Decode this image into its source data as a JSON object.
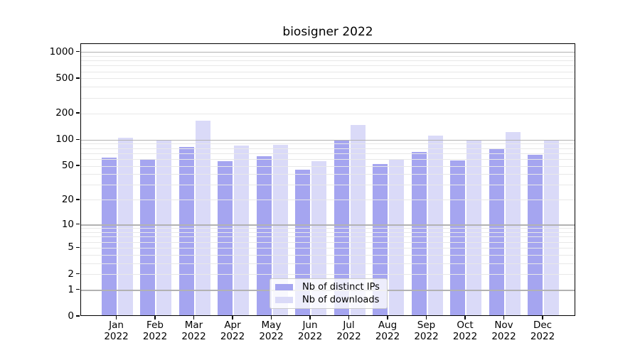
{
  "title": "biosigner 2022",
  "colors": {
    "ips_bar": "#a5a5f0",
    "downloads_bar": "#dadaf8",
    "grid_major": "#b2b2b2",
    "grid_minor": "#e8e8e8",
    "axis": "#000000"
  },
  "legend": {
    "items": [
      {
        "label": "Nb of distinct IPs",
        "color": "#a5a5f0"
      },
      {
        "label": "Nb of downloads",
        "color": "#dadaf8"
      }
    ]
  },
  "chart_data": {
    "type": "bar",
    "title": "biosigner 2022",
    "categories": [
      "Jan 2022",
      "Feb 2022",
      "Mar 2022",
      "Apr 2022",
      "May 2022",
      "Jun 2022",
      "Jul 2022",
      "Aug 2022",
      "Sep 2022",
      "Oct 2022",
      "Nov 2022",
      "Dec 2022"
    ],
    "series": [
      {
        "name": "Nb of distinct IPs",
        "color": "#a5a5f0",
        "values": [
          62,
          59,
          82,
          57,
          64,
          45,
          99,
          52,
          73,
          58,
          78,
          67
        ]
      },
      {
        "name": "Nb of downloads",
        "color": "#dadaf8",
        "values": [
          105,
          100,
          164,
          86,
          88,
          57,
          147,
          60,
          111,
          100,
          123,
          100
        ]
      }
    ],
    "xlabel": "",
    "ylabel": "",
    "y_scale": "log10(1+x)",
    "ylim": [
      0,
      1240
    ],
    "y_ticks": [
      0,
      1,
      2,
      5,
      10,
      20,
      50,
      100,
      200,
      500,
      1000
    ],
    "y_gridlines_major": [
      1,
      10,
      100,
      1000
    ],
    "y_gridlines_minor": [
      2,
      3,
      4,
      5,
      6,
      7,
      8,
      9,
      20,
      30,
      40,
      50,
      60,
      70,
      80,
      90,
      200,
      300,
      400,
      500,
      600,
      700,
      800,
      900
    ],
    "grid": true,
    "legend_position": "lower center"
  }
}
